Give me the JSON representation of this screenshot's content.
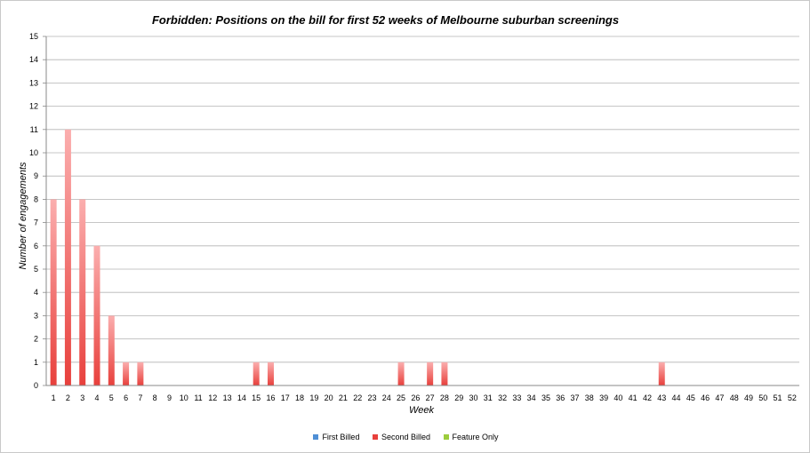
{
  "chart_data": {
    "type": "bar",
    "stacked": true,
    "title": "Forbidden: Positions on the bill for first 52 weeks of Melbourne suburban screenings",
    "xlabel": "Week",
    "ylabel": "Number of engagements",
    "ylim": [
      0,
      15
    ],
    "grid": true,
    "legend_position": "bottom",
    "categories": [
      "1",
      "2",
      "3",
      "4",
      "5",
      "6",
      "7",
      "8",
      "9",
      "10",
      "11",
      "12",
      "13",
      "14",
      "15",
      "16",
      "17",
      "18",
      "19",
      "20",
      "21",
      "22",
      "23",
      "24",
      "25",
      "26",
      "27",
      "28",
      "29",
      "30",
      "31",
      "32",
      "33",
      "34",
      "35",
      "36",
      "37",
      "38",
      "39",
      "40",
      "41",
      "42",
      "43",
      "44",
      "45",
      "46",
      "47",
      "48",
      "49",
      "50",
      "51",
      "52"
    ],
    "y_ticks": [
      "0",
      "1",
      "2",
      "3",
      "4",
      "5",
      "6",
      "7",
      "8",
      "9",
      "10",
      "11",
      "12",
      "13",
      "14",
      "15"
    ],
    "series": [
      {
        "name": "First Billed",
        "color": "#4f8fd6",
        "values": [
          0,
          0,
          0,
          0,
          0,
          0,
          0,
          0,
          0,
          0,
          0,
          0,
          0,
          0,
          0,
          0,
          0,
          0,
          0,
          0,
          0,
          0,
          0,
          0,
          0,
          0,
          0,
          0,
          0,
          0,
          0,
          0,
          0,
          0,
          0,
          0,
          0,
          0,
          0,
          0,
          0,
          0,
          0,
          0,
          0,
          0,
          0,
          0,
          0,
          0,
          0,
          0
        ]
      },
      {
        "name": "Second Billed",
        "color": "#e8403c",
        "values": [
          8,
          11,
          8,
          6,
          3,
          1,
          1,
          0,
          0,
          0,
          0,
          0,
          0,
          0,
          1,
          1,
          0,
          0,
          0,
          0,
          0,
          0,
          0,
          0,
          1,
          0,
          1,
          1,
          0,
          0,
          0,
          0,
          0,
          0,
          0,
          0,
          0,
          0,
          0,
          0,
          0,
          0,
          1,
          0,
          0,
          0,
          0,
          0,
          0,
          0,
          0,
          0
        ]
      },
      {
        "name": "Feature Only",
        "color": "#9ccc3c",
        "values": [
          0,
          0,
          0,
          0,
          0,
          0,
          0,
          0,
          0,
          0,
          0,
          0,
          0,
          0,
          0,
          0,
          0,
          0,
          0,
          0,
          0,
          0,
          0,
          0,
          0,
          0,
          0,
          0,
          0,
          0,
          0,
          0,
          0,
          0,
          0,
          0,
          0,
          0,
          0,
          0,
          0,
          0,
          0,
          0,
          0,
          0,
          0,
          0,
          0,
          0,
          0,
          0
        ]
      }
    ]
  }
}
